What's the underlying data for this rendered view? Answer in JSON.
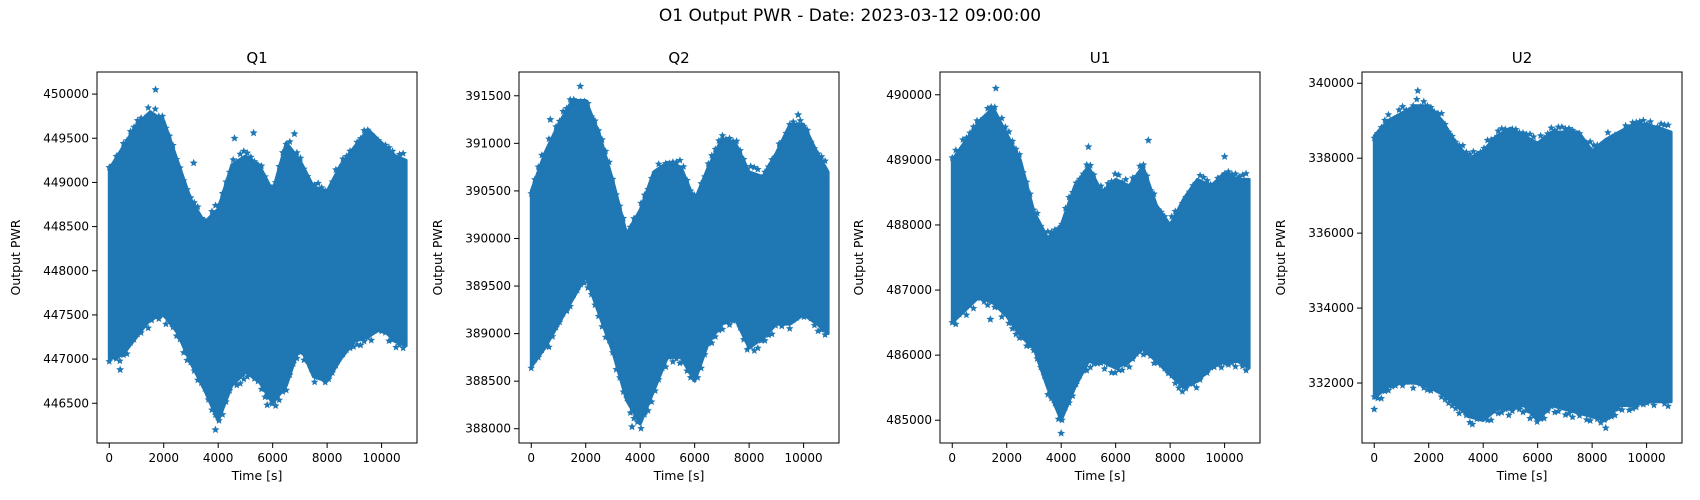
{
  "figure": {
    "title": "O1 Output PWR - Date: 2023-03-12 09:00:00"
  },
  "chart_data": [
    {
      "type": "scatter",
      "title": "Q1",
      "xlabel": "Time [s]",
      "ylabel": "Output PWR",
      "marker": "star",
      "color": "#1f77b4",
      "xlim": [
        -450,
        11300
      ],
      "ylim": [
        446050,
        450250
      ],
      "xticks": [
        0,
        2000,
        4000,
        6000,
        8000,
        10000
      ],
      "yticks": [
        446500,
        447000,
        447500,
        448000,
        448500,
        449000,
        449500,
        450000
      ],
      "x": [
        0,
        500,
        1000,
        1500,
        2000,
        2500,
        3000,
        3500,
        4000,
        4500,
        5000,
        5500,
        6000,
        6500,
        7000,
        7500,
        8000,
        8500,
        9000,
        9500,
        10000,
        10500,
        10900
      ],
      "upper_envelope": [
        449150,
        449400,
        449650,
        449800,
        449700,
        449250,
        448800,
        448550,
        448700,
        449200,
        449300,
        449200,
        448900,
        449450,
        449250,
        448950,
        448900,
        449200,
        449400,
        449600,
        449450,
        449300,
        449250
      ],
      "lower_envelope": [
        447000,
        447050,
        447250,
        447450,
        447500,
        447300,
        446950,
        446650,
        446300,
        446700,
        446850,
        446750,
        446500,
        446700,
        447150,
        446800,
        446750,
        447000,
        447200,
        447250,
        447350,
        447200,
        447150
      ],
      "outliers": [
        [
          1700,
          450050
        ],
        [
          3100,
          449220
        ],
        [
          4600,
          449500
        ],
        [
          5300,
          449560
        ],
        [
          6800,
          449550
        ],
        [
          3900,
          446200
        ],
        [
          5800,
          446480
        ],
        [
          400,
          446880
        ],
        [
          8200,
          446900
        ]
      ]
    },
    {
      "type": "scatter",
      "title": "Q2",
      "xlabel": "Time [s]",
      "ylabel": "Output PWR",
      "marker": "star",
      "color": "#1f77b4",
      "xlim": [
        -450,
        11300
      ],
      "ylim": [
        387850,
        391750
      ],
      "xticks": [
        0,
        2000,
        4000,
        6000,
        8000,
        10000
      ],
      "yticks": [
        388000,
        388500,
        389000,
        389500,
        390000,
        390500,
        391000,
        391500
      ],
      "x": [
        0,
        500,
        1000,
        1500,
        2000,
        2500,
        3000,
        3500,
        4000,
        4500,
        5000,
        5500,
        6000,
        6500,
        7000,
        7500,
        8000,
        8500,
        9000,
        9500,
        10000,
        10500,
        10900
      ],
      "upper_envelope": [
        390500,
        390900,
        391200,
        391450,
        391450,
        391100,
        390600,
        390050,
        390300,
        390700,
        390800,
        390750,
        390400,
        390750,
        391050,
        391000,
        390700,
        390650,
        390900,
        391200,
        391200,
        390900,
        390700
      ],
      "lower_envelope": [
        388650,
        388850,
        389100,
        389350,
        389600,
        389200,
        388800,
        388300,
        388050,
        388400,
        388750,
        388750,
        388500,
        388900,
        389100,
        389150,
        388850,
        388950,
        389100,
        389100,
        389200,
        389100,
        389000
      ],
      "outliers": [
        [
          1800,
          391600
        ],
        [
          700,
          391250
        ],
        [
          9800,
          391300
        ],
        [
          3700,
          388020
        ],
        [
          700,
          389050
        ],
        [
          1300,
          389250
        ],
        [
          9200,
          389080
        ]
      ]
    },
    {
      "type": "scatter",
      "title": "U1",
      "xlabel": "Time [s]",
      "ylabel": "Output PWR",
      "marker": "star",
      "color": "#1f77b4",
      "xlim": [
        -450,
        11300
      ],
      "ylim": [
        484650,
        490350
      ],
      "xticks": [
        0,
        2000,
        4000,
        6000,
        8000,
        10000
      ],
      "yticks": [
        485000,
        486000,
        487000,
        488000,
        489000,
        490000
      ],
      "x": [
        0,
        500,
        1000,
        1500,
        2000,
        2500,
        3000,
        3500,
        4000,
        4500,
        5000,
        5500,
        6000,
        6500,
        7000,
        7500,
        8000,
        8500,
        9000,
        9500,
        10000,
        10500,
        10900
      ],
      "upper_envelope": [
        489000,
        489300,
        489600,
        489800,
        489400,
        489000,
        488200,
        487800,
        488000,
        488600,
        488900,
        488500,
        488700,
        488600,
        488900,
        488300,
        488000,
        488400,
        488700,
        488600,
        488800,
        488700,
        488700
      ],
      "lower_envelope": [
        486500,
        486700,
        486900,
        486800,
        486600,
        486300,
        486100,
        485500,
        485000,
        485500,
        485900,
        485900,
        485800,
        485900,
        486100,
        485900,
        485700,
        485500,
        485600,
        485800,
        485900,
        485900,
        485800
      ],
      "outliers": [
        [
          1600,
          490100
        ],
        [
          5000,
          489200
        ],
        [
          7200,
          489300
        ],
        [
          10000,
          489050
        ],
        [
          4000,
          484800
        ],
        [
          1400,
          486550
        ],
        [
          2600,
          488200
        ]
      ]
    },
    {
      "type": "scatter",
      "title": "U2",
      "xlabel": "Time [s]",
      "ylabel": "Output PWR",
      "marker": "star",
      "color": "#1f77b4",
      "xlim": [
        -450,
        11300
      ],
      "ylim": [
        330400,
        340300
      ],
      "xticks": [
        0,
        2000,
        4000,
        6000,
        8000,
        10000
      ],
      "yticks": [
        332000,
        334000,
        336000,
        338000,
        340000
      ],
      "x": [
        0,
        500,
        1000,
        1500,
        2000,
        2500,
        3000,
        3500,
        4000,
        4500,
        5000,
        5500,
        6000,
        6500,
        7000,
        7500,
        8000,
        8500,
        9000,
        9500,
        10000,
        10500,
        10900
      ],
      "upper_envelope": [
        338600,
        339000,
        339200,
        339400,
        339400,
        339000,
        338400,
        338000,
        338200,
        338600,
        338800,
        338600,
        338400,
        338700,
        338700,
        338700,
        338200,
        338500,
        338700,
        338900,
        338900,
        338800,
        338700
      ],
      "lower_envelope": [
        331600,
        331900,
        332000,
        332000,
        331900,
        331700,
        331400,
        331100,
        331000,
        331300,
        331300,
        331400,
        331000,
        331400,
        331300,
        331200,
        331100,
        331000,
        331400,
        331400,
        331500,
        331500,
        331500
      ],
      "outliers": [
        [
          1600,
          339800
        ],
        [
          3600,
          330900
        ],
        [
          8500,
          330800
        ],
        [
          0,
          331300
        ]
      ]
    }
  ]
}
